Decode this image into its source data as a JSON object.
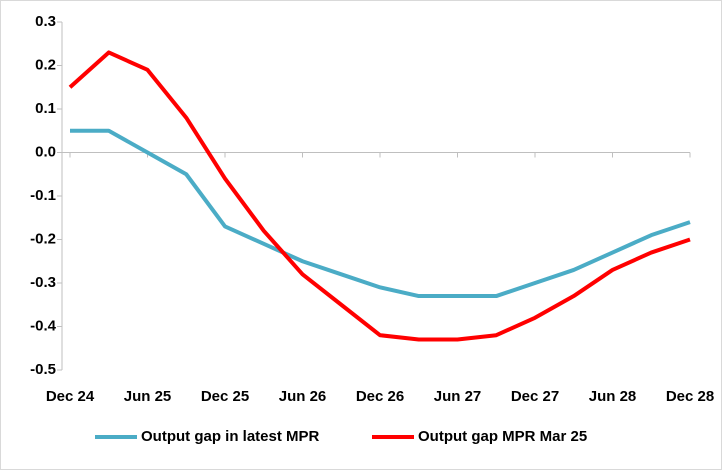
{
  "chart_data": {
    "type": "line",
    "categories": [
      "Dec 24",
      null,
      "Jun 25",
      null,
      "Dec 25",
      null,
      "Jun 26",
      null,
      "Dec 26",
      null,
      "Jun 27",
      null,
      "Dec 27",
      null,
      "Jun 28",
      null,
      "Dec 28"
    ],
    "series": [
      {
        "name": "Output gap in latest MPR",
        "color": "#4bacc6",
        "values": [
          0.05,
          0.05,
          0.0,
          -0.05,
          -0.17,
          -0.21,
          -0.25,
          -0.28,
          -0.31,
          -0.33,
          -0.33,
          -0.33,
          -0.3,
          -0.27,
          -0.23,
          -0.19,
          -0.16
        ]
      },
      {
        "name": "Output gap MPR Mar 25",
        "color": "#ff0000",
        "values": [
          0.15,
          0.23,
          0.19,
          0.08,
          -0.06,
          -0.18,
          -0.28,
          -0.35,
          -0.42,
          -0.43,
          -0.43,
          -0.42,
          -0.38,
          -0.33,
          -0.27,
          -0.23,
          -0.2
        ]
      }
    ],
    "ylim": [
      -0.5,
      0.3
    ],
    "yticks": [
      0.3,
      0.2,
      0.1,
      {
        "value": 0,
        "label": "0.0"
      },
      -0.1,
      -0.2,
      -0.3,
      -0.4,
      -0.5
    ],
    "legend": "bottom"
  }
}
